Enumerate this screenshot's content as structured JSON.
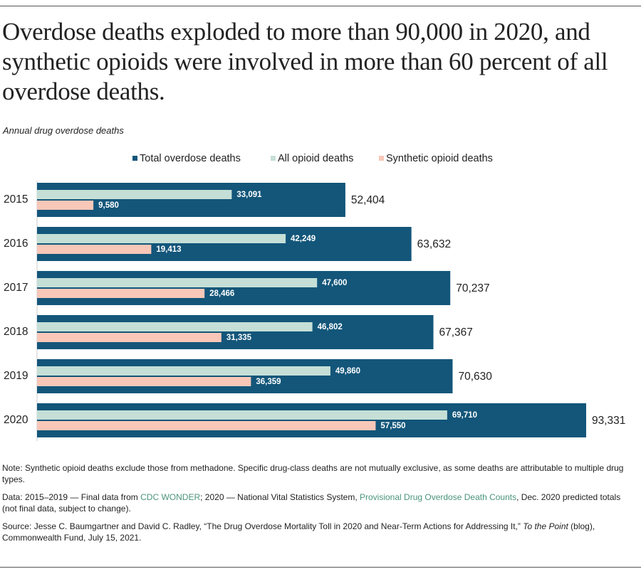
{
  "chart_data": {
    "type": "grouped-overlap-bar",
    "title": "Overdose deaths exploded to more than 90,000 in 2020, and synthetic opioids were involved in more than 60 percent of all overdose deaths.",
    "subtitle": "Annual drug overdose deaths",
    "categories": [
      "2015",
      "2016",
      "2017",
      "2018",
      "2019",
      "2020"
    ],
    "series": [
      {
        "name": "Total overdose deaths",
        "color": "#13567a",
        "values": [
          52404,
          63632,
          70237,
          67367,
          70630,
          93331
        ],
        "value_labels": [
          "52,404",
          "63,632",
          "70,237",
          "67,367",
          "70,630",
          "93,331"
        ]
      },
      {
        "name": "All opioid deaths",
        "color": "#c5dfd7",
        "values": [
          33091,
          42249,
          47600,
          46802,
          49860,
          69710
        ],
        "value_labels": [
          "33,091",
          "42,249",
          "47,600",
          "46,802",
          "49,860",
          "69,710"
        ]
      },
      {
        "name": "Synthetic opioid deaths",
        "color": "#f8c7b8",
        "values": [
          9580,
          19413,
          28466,
          31335,
          36359,
          57550
        ],
        "value_labels": [
          "9,580",
          "19,413",
          "28,466",
          "31,335",
          "36,359",
          "57,550"
        ]
      }
    ]
  },
  "notes": {
    "note": "Note: Synthetic opioid deaths exclude those from methadone. Specific drug-class deaths are not mutually exclusive, as some deaths are attributable to multiple drug types.",
    "data": {
      "prefix": "Data: 2015–2019 — Final data from ",
      "link1": "CDC WONDER",
      "middle": "; 2020 — National Vital Statistics System, ",
      "link2": "Provisional Drug Overdose Death Counts",
      "suffix": ", Dec. 2020 predicted totals (not final data, subject to change)."
    },
    "source": {
      "prefix": "Source: Jesse C. Baumgartner and David C. Radley, “The Drug Overdose Mortality Toll in 2020 and Near-Term Actions for Addressing It,” ",
      "italic": "To the Point",
      "suffix": " (blog), Commonwealth Fund, July 15, 2021."
    }
  }
}
